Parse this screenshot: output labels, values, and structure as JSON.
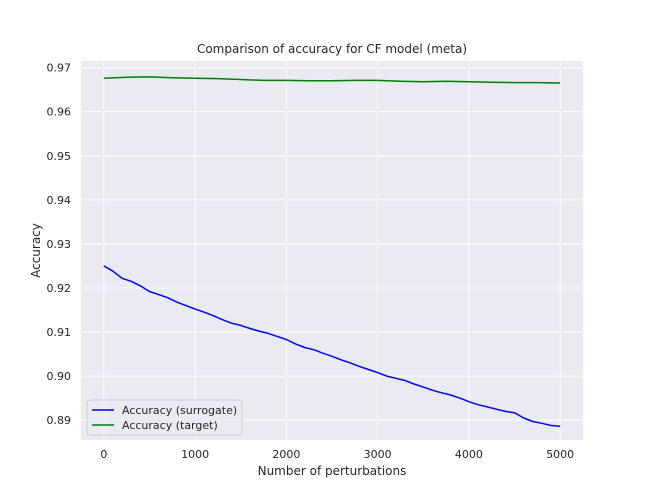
{
  "chart_data": {
    "type": "line",
    "title": "Comparison of accuracy for CF model (meta)",
    "xlabel": "Number of perturbations",
    "ylabel": "Accuracy",
    "xlim": [
      -250,
      5250
    ],
    "ylim": [
      0.8855,
      0.9715
    ],
    "xticks": [
      0,
      1000,
      2000,
      3000,
      4000,
      5000
    ],
    "xtick_labels": [
      "0",
      "1000",
      "2000",
      "3000",
      "4000",
      "5000"
    ],
    "yticks": [
      0.89,
      0.9,
      0.91,
      0.92,
      0.93,
      0.94,
      0.95,
      0.96,
      0.97
    ],
    "ytick_labels": [
      "0.89",
      "0.90",
      "0.91",
      "0.92",
      "0.93",
      "0.94",
      "0.95",
      "0.96",
      "0.97"
    ],
    "grid": true,
    "background": "#eaeaf2",
    "legend_position": "lower-left",
    "series": [
      {
        "name": "Accuracy (surrogate)",
        "color": "#0000ff",
        "x": [
          0,
          100,
          200,
          300,
          400,
          500,
          600,
          700,
          800,
          900,
          1000,
          1100,
          1200,
          1300,
          1400,
          1500,
          1600,
          1700,
          1800,
          1900,
          2000,
          2100,
          2200,
          2300,
          2400,
          2500,
          2600,
          2700,
          2800,
          2900,
          3000,
          3100,
          3200,
          3300,
          3400,
          3500,
          3600,
          3700,
          3800,
          3900,
          4000,
          4100,
          4200,
          4300,
          4400,
          4500,
          4600,
          4700,
          4800,
          4900,
          5000
        ],
        "y": [
          0.925,
          0.9238,
          0.9222,
          0.9215,
          0.9205,
          0.9192,
          0.9185,
          0.9178,
          0.9168,
          0.916,
          0.9152,
          0.9145,
          0.9137,
          0.9128,
          0.912,
          0.9115,
          0.9108,
          0.9102,
          0.9097,
          0.909,
          0.9083,
          0.9073,
          0.9065,
          0.906,
          0.9052,
          0.9045,
          0.9037,
          0.903,
          0.9022,
          0.9015,
          0.9008,
          0.9,
          0.8995,
          0.899,
          0.8982,
          0.8975,
          0.8968,
          0.8962,
          0.8957,
          0.895,
          0.8942,
          0.8935,
          0.893,
          0.8925,
          0.892,
          0.8917,
          0.8905,
          0.8897,
          0.8893,
          0.8888,
          0.8886
        ]
      },
      {
        "name": "Accuracy (target)",
        "color": "#008000",
        "x": [
          0,
          250,
          500,
          750,
          1000,
          1250,
          1500,
          1750,
          2000,
          2250,
          2500,
          2750,
          3000,
          3250,
          3500,
          3750,
          4000,
          4250,
          4500,
          4750,
          5000
        ],
        "y": [
          0.9676,
          0.9678,
          0.9679,
          0.9677,
          0.9676,
          0.9675,
          0.9673,
          0.9671,
          0.9671,
          0.967,
          0.967,
          0.9671,
          0.9671,
          0.9669,
          0.9668,
          0.9669,
          0.9668,
          0.9667,
          0.9666,
          0.9666,
          0.9665
        ]
      }
    ]
  }
}
